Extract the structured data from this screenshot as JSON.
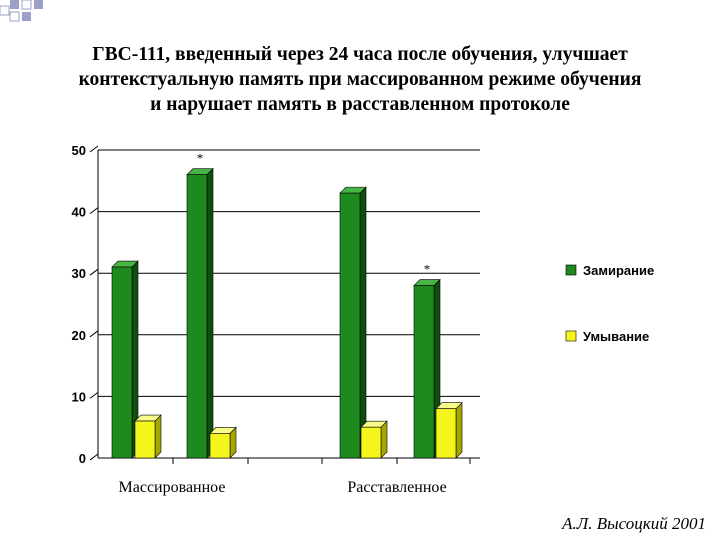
{
  "title_lines": [
    "ГВС-111, введенный через 24 часа после обучения, улучшает",
    "контекстуальную память при массированном режиме обучения",
    "и нарушает память в расставленном протоколе"
  ],
  "credit": "А.Л. Высоцкий 2001",
  "colors": {
    "freezing": "#1e8a1e",
    "freezing_dark": "#0e4e0e",
    "freezing_top": "#46b446",
    "washing": "#f5f51e",
    "washing_dark": "#a6a600",
    "washing_top": "#fbfb8a"
  },
  "chart_data": {
    "type": "bar",
    "title": "",
    "xlabel": "",
    "ylabel": "",
    "ylim": [
      0,
      50
    ],
    "yticks": [
      0,
      10,
      20,
      30,
      40,
      50
    ],
    "grid": true,
    "legend_position": "right",
    "groups": [
      {
        "label": "Массированное",
        "bars": [
          {
            "series": "Замирание",
            "value": 31,
            "annotation": ""
          },
          {
            "series": "Умывание",
            "value": 6,
            "annotation": ""
          },
          {
            "series": "Замирание",
            "value": 46,
            "annotation": "*"
          },
          {
            "series": "Умывание",
            "value": 4,
            "annotation": ""
          }
        ]
      },
      {
        "label": "Расставленное",
        "bars": [
          {
            "series": "Замирание",
            "value": 43,
            "annotation": ""
          },
          {
            "series": "Умывание",
            "value": 5,
            "annotation": ""
          },
          {
            "series": "Замирание",
            "value": 28,
            "annotation": "*"
          },
          {
            "series": "Умывание",
            "value": 8,
            "annotation": ""
          }
        ]
      }
    ],
    "series": [
      {
        "name": "Замирание",
        "color_key": "freezing"
      },
      {
        "name": "Умывание",
        "color_key": "washing"
      }
    ]
  }
}
